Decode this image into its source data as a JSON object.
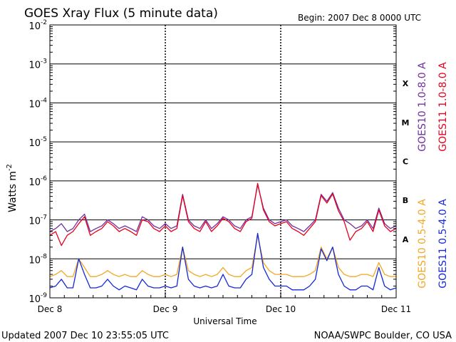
{
  "chart_data": {
    "type": "line",
    "title": "GOES Xray Flux (5 minute data)",
    "begin_label": "Begin:  2007 Dec 8 0000 UTC",
    "xlabel": "Universal Time",
    "ylabel_main": "Watts m",
    "ylabel_exp": "-2",
    "y_scale": "log",
    "ylim": [
      1e-09,
      0.01
    ],
    "xlim_days": [
      0,
      3
    ],
    "x_ticks": [
      {
        "label": "Dec 8",
        "value": 0
      },
      {
        "label": "Dec 9",
        "value": 1
      },
      {
        "label": "Dec 10",
        "value": 2
      },
      {
        "label": "Dec 11",
        "value": 3
      }
    ],
    "y_ticks": [
      {
        "base": "10",
        "exp": "-2",
        "value": -2
      },
      {
        "base": "10",
        "exp": "-3",
        "value": -3
      },
      {
        "base": "10",
        "exp": "-4",
        "value": -4
      },
      {
        "base": "10",
        "exp": "-5",
        "value": -5
      },
      {
        "base": "10",
        "exp": "-6",
        "value": -6
      },
      {
        "base": "10",
        "exp": "-7",
        "value": -7
      },
      {
        "base": "10",
        "exp": "-8",
        "value": -8
      },
      {
        "base": "10",
        "exp": "-9",
        "value": -9
      }
    ],
    "flare_classes": [
      {
        "label": "X",
        "value": -3.5
      },
      {
        "label": "M",
        "value": -4.5
      },
      {
        "label": "C",
        "value": -5.5
      },
      {
        "label": "B",
        "value": -6.5
      },
      {
        "label": "A",
        "value": -7.5
      }
    ],
    "grid": true,
    "legend_right": [
      {
        "name": "GOES10 1.0-8.0 A",
        "color": "#7030a0"
      },
      {
        "name": "GOES11 1.0-8.0 A",
        "color": "#e8001c"
      },
      {
        "name": "GOES10 0.5-4.0 A",
        "color": "#f5a623"
      },
      {
        "name": "GOES11 0.5-4.0 A",
        "color": "#1428d8"
      }
    ],
    "series": [
      {
        "name": "GOES10 1.0-8.0 A",
        "color": "#7030a0",
        "x": [
          0.0,
          0.05,
          0.1,
          0.15,
          0.2,
          0.25,
          0.3,
          0.35,
          0.4,
          0.45,
          0.5,
          0.55,
          0.6,
          0.65,
          0.7,
          0.75,
          0.8,
          0.85,
          0.9,
          0.95,
          1.0,
          1.05,
          1.1,
          1.15,
          1.2,
          1.25,
          1.3,
          1.35,
          1.4,
          1.45,
          1.5,
          1.55,
          1.6,
          1.65,
          1.7,
          1.75,
          1.8,
          1.85,
          1.9,
          1.95,
          2.0,
          2.05,
          2.1,
          2.15,
          2.2,
          2.25,
          2.3,
          2.35,
          2.4,
          2.45,
          2.5,
          2.55,
          2.6,
          2.65,
          2.7,
          2.75,
          2.8,
          2.85,
          2.9,
          2.95,
          3.0
        ],
        "y": [
          5e-08,
          6e-08,
          8e-08,
          5e-08,
          6e-08,
          1e-07,
          1.4e-07,
          5e-08,
          6e-08,
          7e-08,
          1e-07,
          8e-08,
          6e-08,
          7e-08,
          6e-08,
          5e-08,
          1.2e-07,
          1e-07,
          7e-08,
          6e-08,
          8e-08,
          6e-08,
          7e-08,
          4.5e-07,
          1e-07,
          7e-08,
          6e-08,
          1e-07,
          6e-08,
          8e-08,
          1.2e-07,
          1e-07,
          7e-08,
          6e-08,
          1e-07,
          1.2e-07,
          8e-07,
          2e-07,
          1e-07,
          8e-08,
          9e-08,
          1e-07,
          7e-08,
          6e-08,
          5e-08,
          7e-08,
          1e-07,
          4.5e-07,
          3e-07,
          5e-07,
          2e-07,
          1e-07,
          8e-08,
          6e-08,
          7e-08,
          1e-07,
          6e-08,
          2e-07,
          8e-08,
          6e-08,
          7e-08
        ]
      },
      {
        "name": "GOES11 1.0-8.0 A",
        "color": "#e8001c",
        "x": [
          0.0,
          0.05,
          0.1,
          0.15,
          0.2,
          0.25,
          0.3,
          0.35,
          0.4,
          0.45,
          0.5,
          0.55,
          0.6,
          0.65,
          0.7,
          0.75,
          0.8,
          0.85,
          0.9,
          0.95,
          1.0,
          1.05,
          1.1,
          1.15,
          1.2,
          1.25,
          1.3,
          1.35,
          1.4,
          1.45,
          1.5,
          1.55,
          1.6,
          1.65,
          1.7,
          1.75,
          1.8,
          1.85,
          1.9,
          1.95,
          2.0,
          2.05,
          2.1,
          2.15,
          2.2,
          2.25,
          2.3,
          2.35,
          2.4,
          2.45,
          2.5,
          2.55,
          2.6,
          2.65,
          2.7,
          2.75,
          2.8,
          2.85,
          2.9,
          2.95,
          3.0
        ],
        "y": [
          4e-08,
          5e-08,
          2.2e-08,
          4e-08,
          5e-08,
          8e-08,
          1.2e-07,
          4e-08,
          5e-08,
          6e-08,
          9e-08,
          7e-08,
          5e-08,
          6e-08,
          5e-08,
          4e-08,
          1e-07,
          9e-08,
          6e-08,
          5e-08,
          7e-08,
          5e-08,
          6e-08,
          4.2e-07,
          9e-08,
          6e-08,
          5e-08,
          9e-08,
          5e-08,
          7e-08,
          1.1e-07,
          9e-08,
          6e-08,
          5e-08,
          9e-08,
          1.1e-07,
          8.6e-07,
          1.8e-07,
          9e-08,
          7e-08,
          8e-08,
          9e-08,
          6e-08,
          5e-08,
          4e-08,
          6e-08,
          9e-08,
          4.2e-07,
          2.7e-07,
          4.6e-07,
          1.7e-07,
          9e-08,
          3e-08,
          5e-08,
          6e-08,
          9e-08,
          5e-08,
          1.8e-07,
          7e-08,
          5e-08,
          6e-08
        ]
      },
      {
        "name": "GOES10 0.5-4.0 A",
        "color": "#f5a623",
        "x": [
          0.0,
          0.05,
          0.1,
          0.15,
          0.2,
          0.25,
          0.3,
          0.35,
          0.4,
          0.45,
          0.5,
          0.55,
          0.6,
          0.65,
          0.7,
          0.75,
          0.8,
          0.85,
          0.9,
          0.95,
          1.0,
          1.05,
          1.1,
          1.15,
          1.2,
          1.25,
          1.3,
          1.35,
          1.4,
          1.45,
          1.5,
          1.55,
          1.6,
          1.65,
          1.7,
          1.75,
          1.8,
          1.85,
          1.9,
          1.95,
          2.0,
          2.05,
          2.1,
          2.15,
          2.2,
          2.25,
          2.3,
          2.35,
          2.4,
          2.45,
          2.5,
          2.55,
          2.6,
          2.65,
          2.7,
          2.75,
          2.8,
          2.85,
          2.9,
          2.95,
          3.0
        ],
        "y": [
          3.5e-09,
          4e-09,
          5e-09,
          3.5e-09,
          3.5e-09,
          1e-08,
          6e-09,
          3.5e-09,
          3.5e-09,
          4e-09,
          5e-09,
          4e-09,
          3.5e-09,
          4e-09,
          3.5e-09,
          3.5e-09,
          5e-09,
          4e-09,
          3.5e-09,
          3.5e-09,
          4e-09,
          3.5e-09,
          4e-09,
          2e-08,
          5e-09,
          4e-09,
          3.5e-09,
          4e-09,
          3.5e-09,
          4e-09,
          6e-09,
          4e-09,
          3.5e-09,
          3.5e-09,
          5e-09,
          6e-09,
          4e-08,
          8e-09,
          5e-09,
          4e-09,
          4e-09,
          4e-09,
          3.5e-09,
          3.5e-09,
          3.5e-09,
          4e-09,
          5e-09,
          2e-08,
          1e-08,
          2e-08,
          6e-09,
          4e-09,
          3.5e-09,
          3.5e-09,
          4e-09,
          4e-09,
          3.5e-09,
          8e-09,
          4e-09,
          3.5e-09,
          3.5e-09
        ]
      },
      {
        "name": "GOES11 0.5-4.0 A",
        "color": "#1428d8",
        "x": [
          0.0,
          0.05,
          0.1,
          0.15,
          0.2,
          0.25,
          0.3,
          0.35,
          0.4,
          0.45,
          0.5,
          0.55,
          0.6,
          0.65,
          0.7,
          0.75,
          0.8,
          0.85,
          0.9,
          0.95,
          1.0,
          1.05,
          1.1,
          1.15,
          1.2,
          1.25,
          1.3,
          1.35,
          1.4,
          1.45,
          1.5,
          1.55,
          1.6,
          1.65,
          1.7,
          1.75,
          1.8,
          1.85,
          1.9,
          1.95,
          2.0,
          2.05,
          2.1,
          2.15,
          2.2,
          2.25,
          2.3,
          2.35,
          2.4,
          2.45,
          2.5,
          2.55,
          2.6,
          2.65,
          2.7,
          2.75,
          2.8,
          2.85,
          2.9,
          2.95,
          3.0
        ],
        "y": [
          1.8e-09,
          2e-09,
          3e-09,
          1.8e-09,
          1.8e-09,
          1e-08,
          4e-09,
          1.8e-09,
          1.8e-09,
          2e-09,
          3e-09,
          2e-09,
          1.6e-09,
          2e-09,
          1.8e-09,
          1.6e-09,
          3e-09,
          2e-09,
          1.8e-09,
          1.8e-09,
          2e-09,
          1.8e-09,
          2e-09,
          2e-08,
          3e-09,
          2e-09,
          1.8e-09,
          2e-09,
          1.8e-09,
          2e-09,
          4e-09,
          2e-09,
          1.8e-09,
          1.8e-09,
          3e-09,
          4e-09,
          4.5e-08,
          6e-09,
          3e-09,
          2e-09,
          2e-09,
          2e-09,
          1.6e-09,
          1.6e-09,
          1.6e-09,
          2e-09,
          3e-09,
          1.8e-08,
          9e-09,
          2e-08,
          4e-09,
          2e-09,
          1.6e-09,
          1.6e-09,
          2e-09,
          2e-09,
          1.6e-09,
          6e-09,
          2e-09,
          1.6e-09,
          1.8e-09
        ]
      }
    ]
  },
  "footer": {
    "updated": "Updated 2007 Dec 10 23:55:05 UTC",
    "credit": "NOAA/SWPC Boulder, CO USA"
  }
}
